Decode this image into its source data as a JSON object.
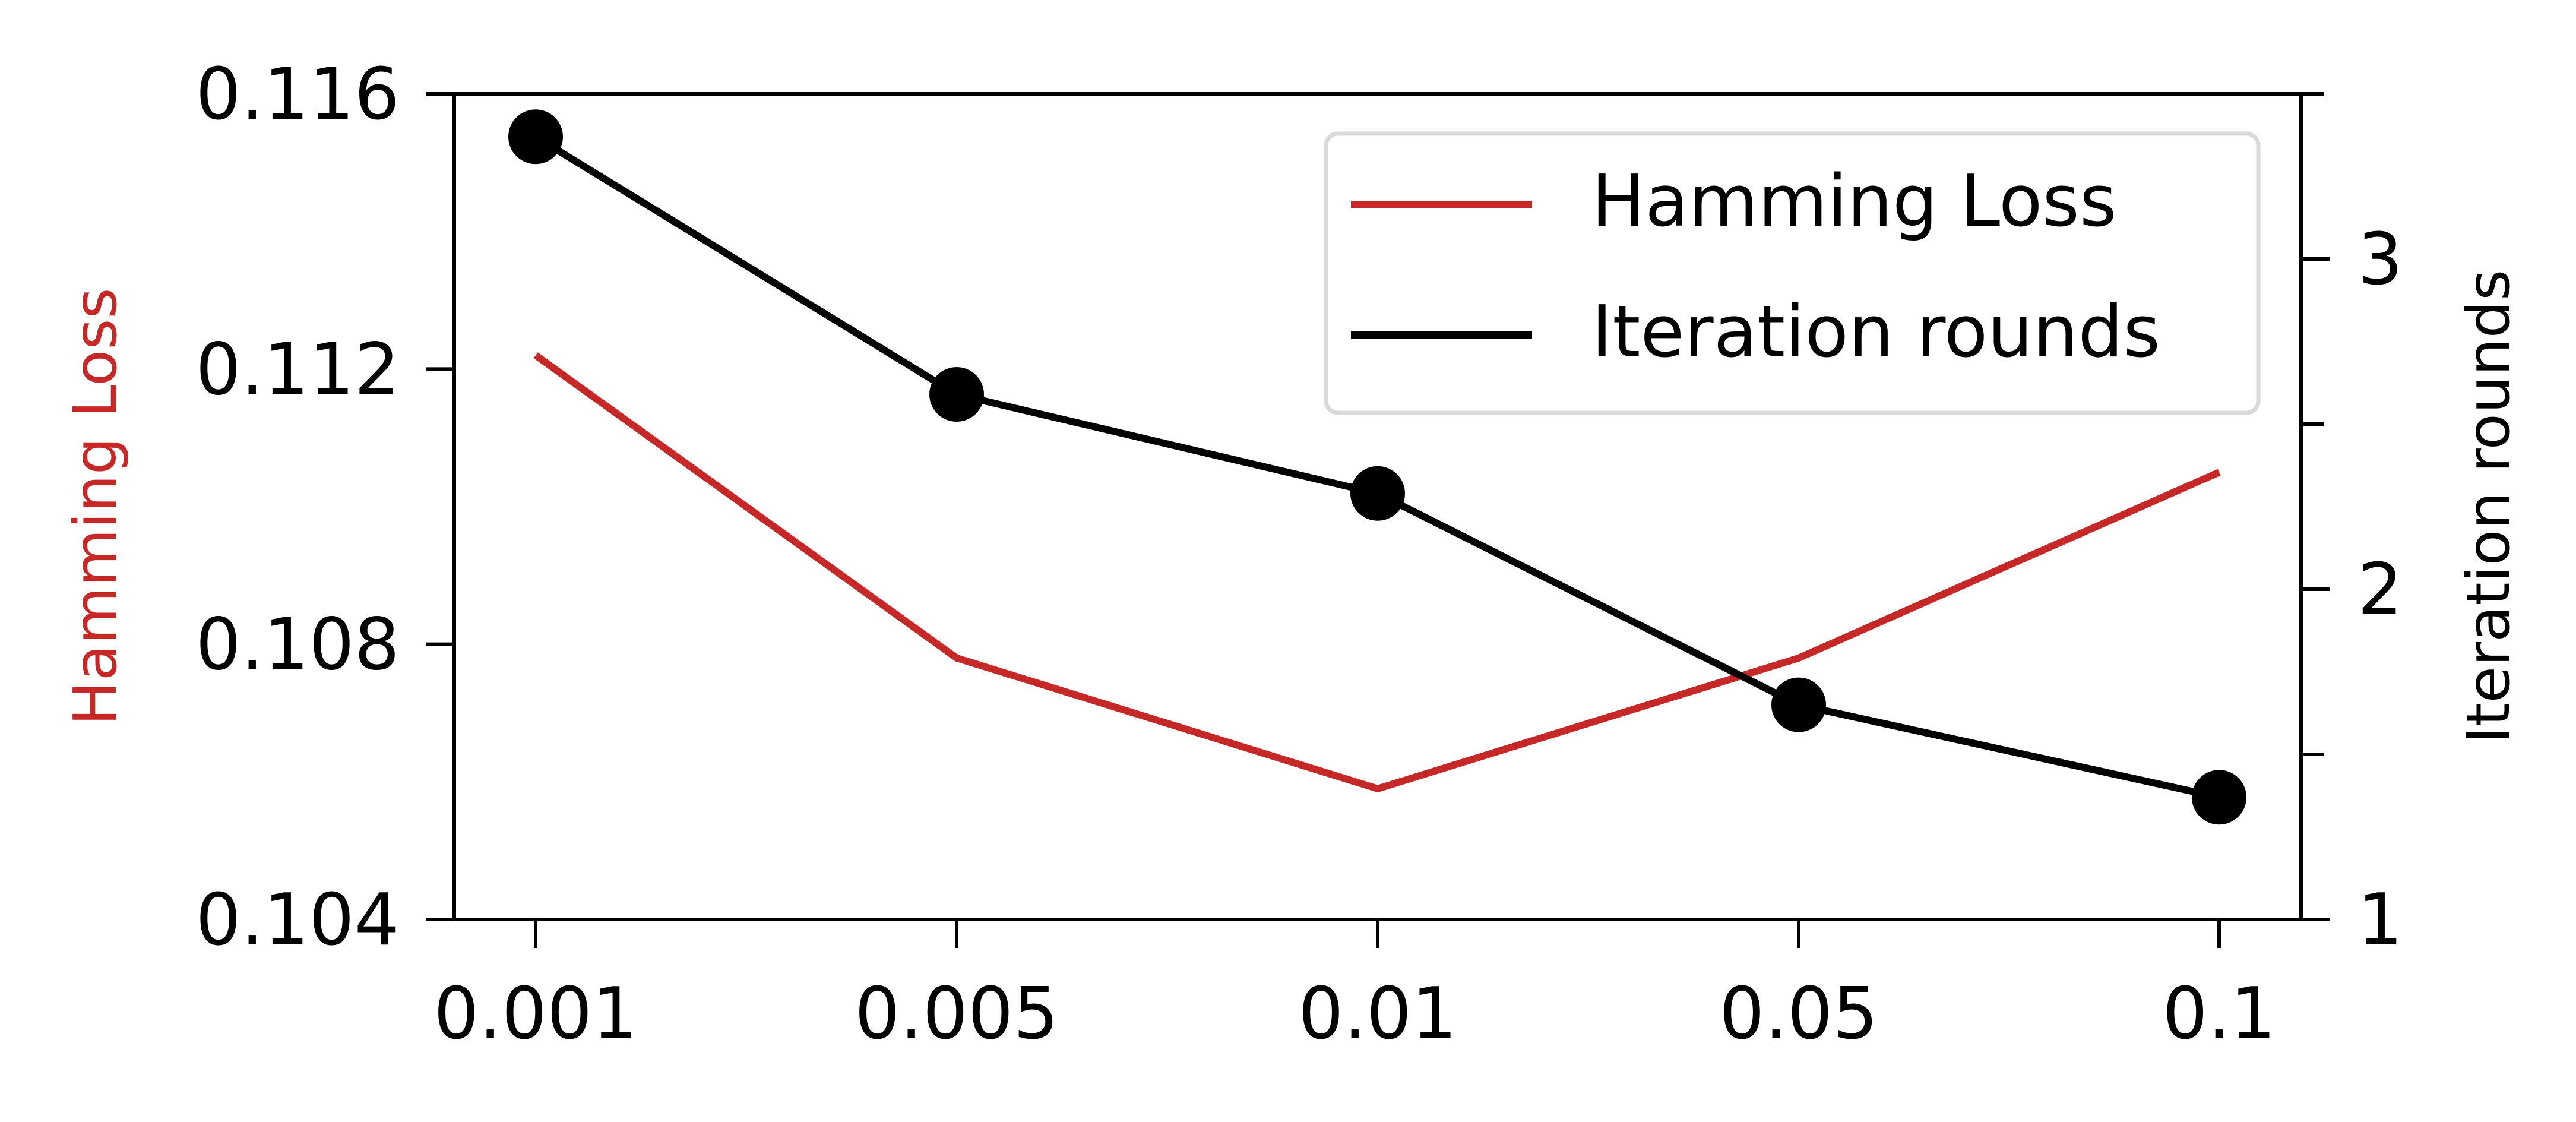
{
  "colors": {
    "hamming": "#c62828",
    "iterations": "#000000",
    "axis": "#000000",
    "legend_border": "#d9d9d9"
  },
  "chart_data": {
    "type": "line",
    "categories": [
      "0.001",
      "0.005",
      "0.01",
      "0.05",
      "0.1"
    ],
    "series": [
      {
        "name": "Hamming Loss",
        "axis": "left",
        "values": [
          0.1122,
          0.1078,
          0.1059,
          0.1078,
          0.1105
        ],
        "markers": false
      },
      {
        "name": "Iteration rounds",
        "axis": "right",
        "values": [
          3.37,
          2.59,
          2.29,
          1.65,
          1.37
        ],
        "markers": true
      }
    ],
    "ylabel_left": "Hamming Loss",
    "ylabel_right": "Iteration rounds",
    "ylim_left": [
      0.104,
      0.116
    ],
    "ylim_right": [
      1,
      3.5
    ],
    "yticks_left": [
      "0.104",
      "0.108",
      "0.112",
      "0.116"
    ],
    "yticks_right": [
      "1",
      "2",
      "3"
    ],
    "legend": {
      "placement": "top-right",
      "entries": [
        "Hamming Loss",
        "Iteration rounds"
      ]
    },
    "grid": false
  }
}
